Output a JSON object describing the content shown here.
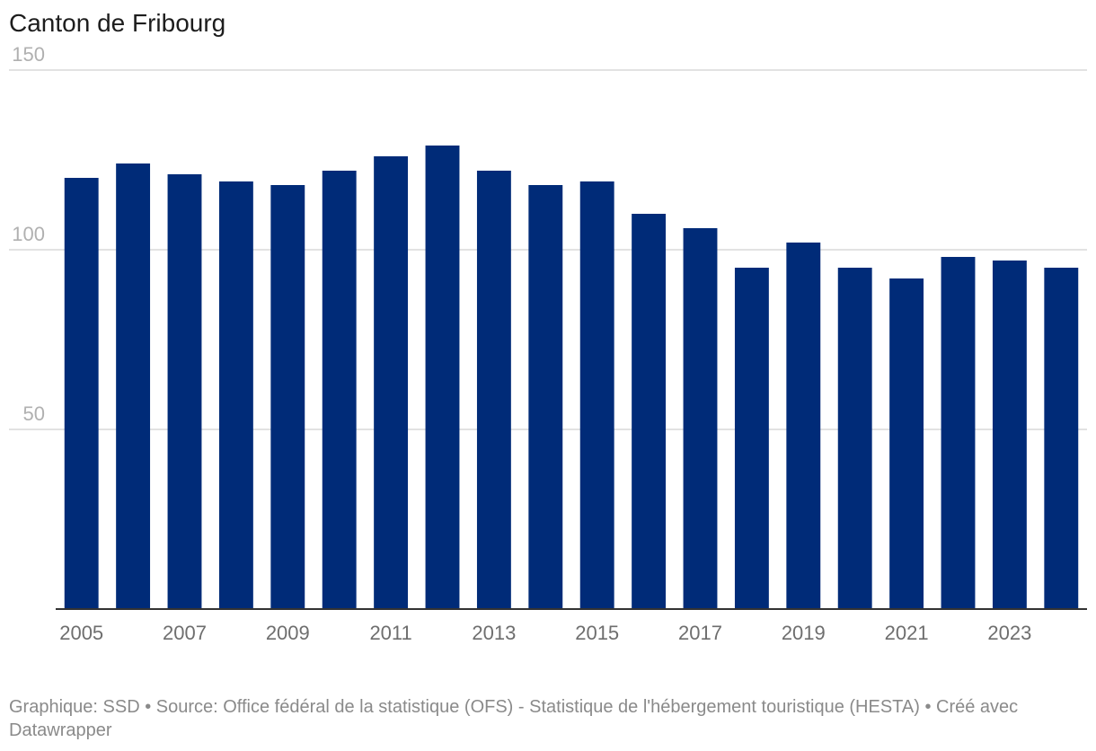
{
  "chart_data": {
    "type": "bar",
    "title": "Canton de Fribourg",
    "categories": [
      "2005",
      "2006",
      "2007",
      "2008",
      "2009",
      "2010",
      "2011",
      "2012",
      "2013",
      "2014",
      "2015",
      "2016",
      "2017",
      "2018",
      "2019",
      "2020",
      "2021",
      "2022",
      "2023",
      "2024"
    ],
    "values": [
      120,
      124,
      121,
      119,
      118,
      122,
      126,
      129,
      122,
      118,
      119,
      110,
      106,
      95,
      102,
      95,
      92,
      98,
      97,
      95
    ],
    "x_tick_labels": [
      "2005",
      "2007",
      "2009",
      "2011",
      "2013",
      "2015",
      "2017",
      "2019",
      "2021",
      "2023"
    ],
    "y_ticks": [
      "150",
      "100",
      "50"
    ],
    "ylim": [
      0,
      150
    ],
    "xlabel": "",
    "ylabel": "",
    "grid": true,
    "bar_color": "#002b78"
  },
  "footer": {
    "text": "Graphique: SSD • Source: Office fédéral de la statistique (OFS) - Statistique de l'hébergement touristique (HESTA) • Créé avec Datawrapper"
  }
}
